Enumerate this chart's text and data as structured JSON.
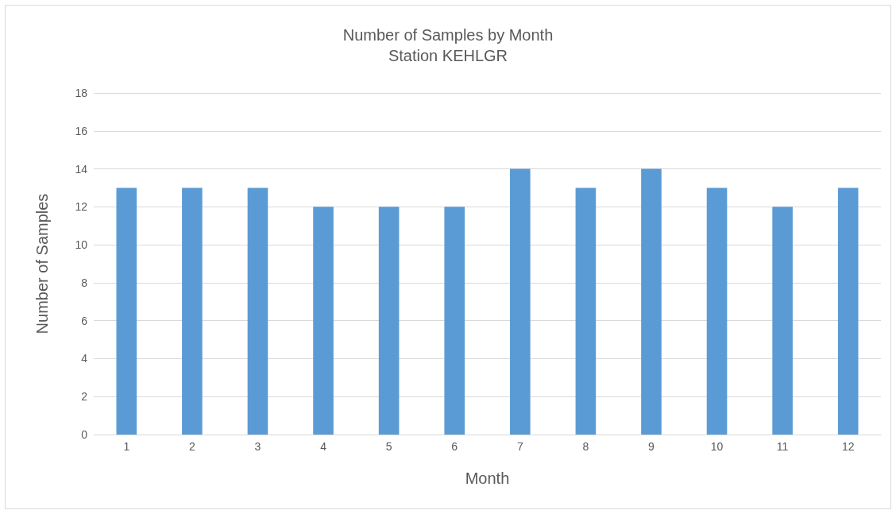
{
  "chart_data": {
    "type": "bar",
    "title": "Number of Samples by Month",
    "subtitle": "Station KEHLGR",
    "xlabel": "Month",
    "ylabel": "Number of Samples",
    "categories": [
      "1",
      "2",
      "3",
      "4",
      "5",
      "6",
      "7",
      "8",
      "9",
      "10",
      "11",
      "12"
    ],
    "values": [
      13,
      13,
      13,
      12,
      12,
      12,
      14,
      13,
      14,
      13,
      12,
      13
    ],
    "color": "#5b9bd5",
    "ylim": [
      0,
      18
    ],
    "yticks": [
      0,
      2,
      4,
      6,
      8,
      10,
      12,
      14,
      16,
      18
    ],
    "grid": "y"
  }
}
